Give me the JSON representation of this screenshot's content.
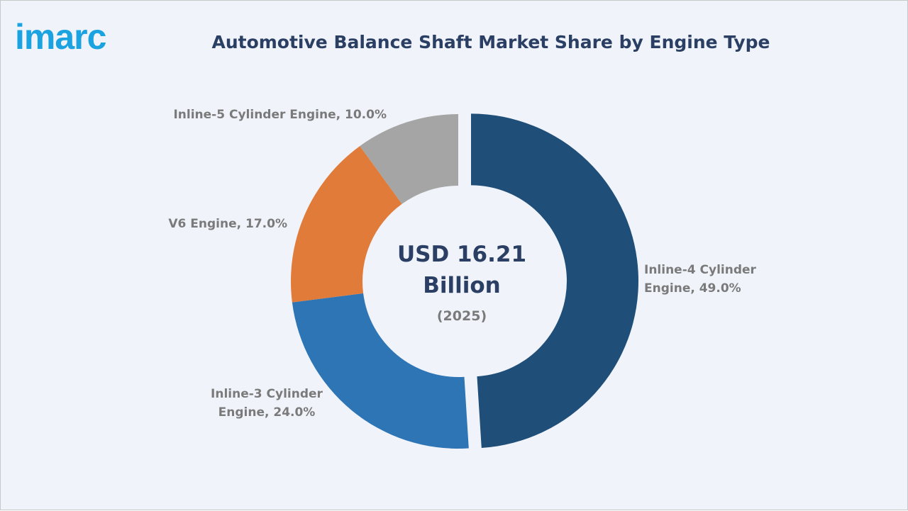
{
  "logo": "imarc",
  "chart_data": {
    "type": "donut",
    "title": "Automotive Balance Shaft Market Share by Engine Type",
    "values": [
      49.0,
      24.0,
      17.0,
      10.0
    ],
    "value_labels": [
      "Inline-4 Cylinder Engine, 49.0%",
      "Inline-3 Cylinder Engine, 24.0%",
      "V6 Engine, 17.0%",
      "Inline-5 Cylinder Engine, 10.0%"
    ],
    "colors": [
      "#1f4e79",
      "#2e75b6",
      "#e07b39",
      "#a5a5a5"
    ],
    "center_label": "USD 16.21 Billion",
    "center_sublabel": "(2025)"
  }
}
